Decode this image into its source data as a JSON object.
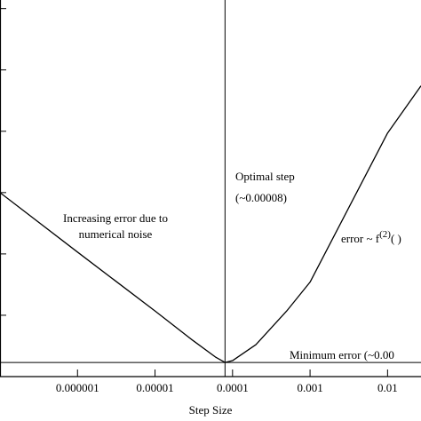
{
  "chart_data": {
    "type": "line",
    "x_label": "Step Size",
    "x": [
      1e-07,
      1e-06,
      1e-05,
      3e-05,
      6e-05,
      8e-05,
      0.0001,
      0.0002,
      0.0005,
      0.001,
      0.01,
      0.027
    ],
    "series": [
      {
        "color": "#000000",
        "values": [
          3.0,
          2.03,
          1.07,
          0.6,
          0.32,
          0.23,
          0.26,
          0.52,
          1.07,
          1.54,
          3.97,
          4.74
        ]
      }
    ],
    "xlim": [
      1e-07,
      0.027
    ],
    "xticks": [
      1e-06,
      1e-05,
      0.0001,
      0.001,
      0.01
    ],
    "log_x": true,
    "ylim": [
      0,
      6.14
    ],
    "yticks": [
      0,
      1,
      2,
      3,
      4,
      5,
      6
    ],
    "optimal_x": 8e-05,
    "minimum_y": 0.23,
    "annotations": {
      "optimal_1": "Optimal step",
      "optimal_2": "(~0.00008)",
      "noise_1": "Increasing error due to",
      "noise_2": "numerical noise",
      "curvature_lead": "error ~ f",
      "curvature_sup": "(2)",
      "curvature_tail": "( )",
      "minimum": "Minimum error (~0.00"
    }
  }
}
